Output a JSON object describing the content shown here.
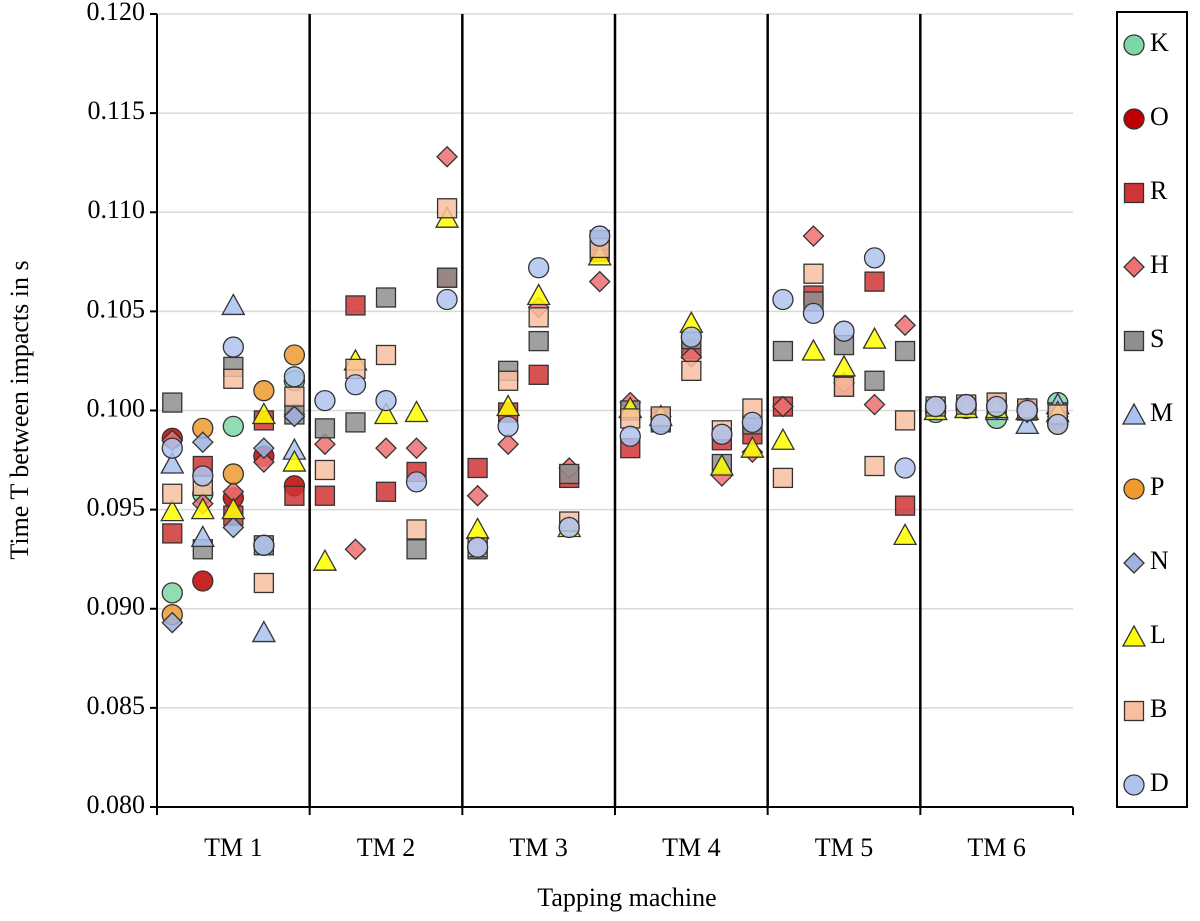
{
  "chart_data": {
    "type": "scatter",
    "x_label": "Tapping machine",
    "y_label": "Time T between impacts in s",
    "categories": [
      "TM 1",
      "TM 2",
      "TM 3",
      "TM 4",
      "TM 5",
      "TM 6"
    ],
    "ylim": [
      0.08,
      0.12
    ],
    "yticks": [
      {
        "value": 0.08,
        "label": "0.080"
      },
      0.085,
      {
        "value": 0.09,
        "label": "0.090"
      },
      0.095,
      {
        "value": 0.1,
        "label": "0.100"
      },
      0.105,
      {
        "value": 0.11,
        "label": "0.110"
      },
      0.115,
      {
        "value": 0.12,
        "label": "0.120"
      }
    ],
    "grid": true,
    "legend": "right",
    "series": [
      {
        "name": "K",
        "marker": "circle",
        "color": "#7fd6a6",
        "values": [
          [
            0.0908,
            0.0958,
            0.0992,
            0.0932,
            0.1015
          ],
          [
            null,
            null,
            null,
            null,
            null
          ],
          [
            null,
            null,
            null,
            null,
            null
          ],
          [
            null,
            null,
            null,
            null,
            null
          ],
          [
            null,
            null,
            null,
            null,
            null
          ],
          [
            0.0999,
            0.1001,
            0.0996,
            0.1001,
            0.1004
          ]
        ]
      },
      {
        "name": "O",
        "marker": "circle",
        "color": "#c00000",
        "values": [
          [
            0.0986,
            0.0914,
            0.0956,
            0.0977,
            0.0962
          ],
          [
            null,
            null,
            null,
            null,
            null
          ],
          [
            null,
            null,
            null,
            null,
            null
          ],
          [
            null,
            null,
            null,
            null,
            null
          ],
          [
            null,
            null,
            null,
            null,
            null
          ],
          [
            0.1002,
            0.1003,
            0.1002,
            0.1,
            0.0994
          ]
        ]
      },
      {
        "name": "R",
        "marker": "square",
        "color": "#d03434",
        "values": [
          [
            0.0938,
            0.0972,
            0.0947,
            0.0995,
            0.0957
          ],
          [
            0.0957,
            0.1053,
            0.0959,
            0.0969,
            0.1067
          ],
          [
            0.0971,
            0.0999,
            0.1018,
            0.0966,
            0.108
          ],
          [
            0.0981,
            0.0996,
            0.1031,
            0.0985,
            0.0988
          ],
          [
            0.1002,
            0.1058,
            0.1012,
            0.1065,
            0.0952
          ],
          [
            0.1001,
            0.1002,
            0.1001,
            0.1,
            0.0999
          ]
        ]
      },
      {
        "name": "H",
        "marker": "diamond",
        "color": "#ee7070",
        "values": [
          [
            0.0985,
            0.0953,
            0.0959,
            0.0974,
            0.0998
          ],
          [
            0.0983,
            0.093,
            0.0981,
            0.0981,
            0.1128
          ],
          [
            0.0957,
            0.0983,
            0.1052,
            0.0971,
            0.1065
          ],
          [
            0.1004,
            0.0997,
            0.1027,
            0.0967,
            0.0979
          ],
          [
            0.1002,
            0.1088,
            0.1014,
            0.1003,
            0.1043
          ],
          [
            0.1001,
            0.1003,
            0.1003,
            0.1001,
            0.0997
          ]
        ]
      },
      {
        "name": "S",
        "marker": "square",
        "color": "#8f8f8f",
        "values": [
          [
            0.1004,
            0.093,
            0.1022,
            0.0932,
            0.0998
          ],
          [
            0.0991,
            0.0994,
            0.1057,
            0.093,
            0.1067
          ],
          [
            0.093,
            0.102,
            0.1035,
            0.0968,
            0.1086
          ],
          [
            0.1,
            0.0994,
            0.1036,
            0.0973,
            0.0993
          ],
          [
            0.103,
            0.1055,
            0.1033,
            0.1015,
            0.103
          ],
          [
            0.1002,
            0.1002,
            0.1004,
            0.1,
            0.0999
          ]
        ]
      },
      {
        "name": "M",
        "marker": "triangle",
        "color": "#a9c2ee",
        "values": [
          [
            0.0973,
            0.0936,
            0.1053,
            0.0888,
            0.098
          ],
          [
            null,
            null,
            null,
            null,
            null
          ],
          [
            null,
            null,
            null,
            null,
            null
          ],
          [
            null,
            null,
            null,
            null,
            null
          ],
          [
            null,
            null,
            null,
            null,
            null
          ],
          [
            0.1,
            0.1001,
            0.1,
            0.0993,
            0.1003
          ]
        ]
      },
      {
        "name": "P",
        "marker": "circle",
        "color": "#ef9a2e",
        "values": [
          [
            0.0897,
            0.0991,
            0.0968,
            0.101,
            0.1028
          ],
          [
            null,
            null,
            null,
            null,
            null
          ],
          [
            null,
            null,
            null,
            null,
            null
          ],
          [
            null,
            null,
            null,
            null,
            null
          ],
          [
            null,
            null,
            null,
            null,
            null
          ],
          [
            0.1002,
            0.1003,
            0.1002,
            0.1,
            0.0993
          ]
        ]
      },
      {
        "name": "N",
        "marker": "diamond",
        "color": "#9fb3df",
        "values": [
          [
            0.0893,
            0.0984,
            0.0941,
            0.0981,
            0.0997
          ],
          [
            null,
            null,
            null,
            null,
            null
          ],
          [
            null,
            null,
            null,
            null,
            null
          ],
          [
            null,
            null,
            null,
            null,
            null
          ],
          [
            null,
            null,
            null,
            null,
            null
          ],
          [
            0.1001,
            0.1002,
            0.1001,
            0.0999,
            0.0998
          ]
        ]
      },
      {
        "name": "L",
        "marker": "triangle",
        "color": "#ffff00",
        "values": [
          [
            0.0949,
            0.095,
            0.095,
            0.0998,
            0.0974
          ],
          [
            0.0924,
            0.1025,
            0.0998,
            0.0999,
            0.1097
          ],
          [
            0.094,
            0.1002,
            0.1058,
            0.0941,
            0.1078
          ],
          [
            0.1001,
            0.0997,
            0.1044,
            0.0972,
            0.0981
          ],
          [
            0.0985,
            0.103,
            0.1022,
            0.1036,
            0.0937
          ],
          [
            0.1,
            0.1001,
            0.1001,
            0.1,
            0.0999
          ]
        ]
      },
      {
        "name": "B",
        "marker": "square",
        "color": "#f7bfa0",
        "values": [
          [
            0.0958,
            0.0962,
            0.1016,
            0.0913,
            0.1007
          ],
          [
            0.097,
            0.1021,
            0.1028,
            0.094,
            0.1102
          ],
          [
            0.0931,
            0.1015,
            0.1047,
            0.0944,
            0.1082
          ],
          [
            0.0996,
            0.0997,
            0.102,
            0.099,
            0.1001
          ],
          [
            0.0966,
            0.1069,
            0.1012,
            0.0972,
            0.0995
          ],
          [
            0.1002,
            0.1003,
            0.1004,
            0.1001,
            0.0998
          ]
        ]
      },
      {
        "name": "D",
        "marker": "circle",
        "color": "#b0c3ef",
        "values": [
          [
            0.0981,
            0.0967,
            0.1032,
            0.0932,
            0.1017
          ],
          [
            0.1005,
            0.1013,
            0.1005,
            0.0964,
            0.1056
          ],
          [
            0.0931,
            0.0992,
            0.1072,
            0.0941,
            0.1088
          ],
          [
            0.0987,
            0.0993,
            0.1037,
            0.0988,
            0.0994
          ],
          [
            0.1056,
            0.1049,
            0.104,
            0.1077,
            0.0971
          ],
          [
            0.1002,
            0.1003,
            0.1002,
            0.1,
            0.0993
          ]
        ]
      }
    ]
  }
}
